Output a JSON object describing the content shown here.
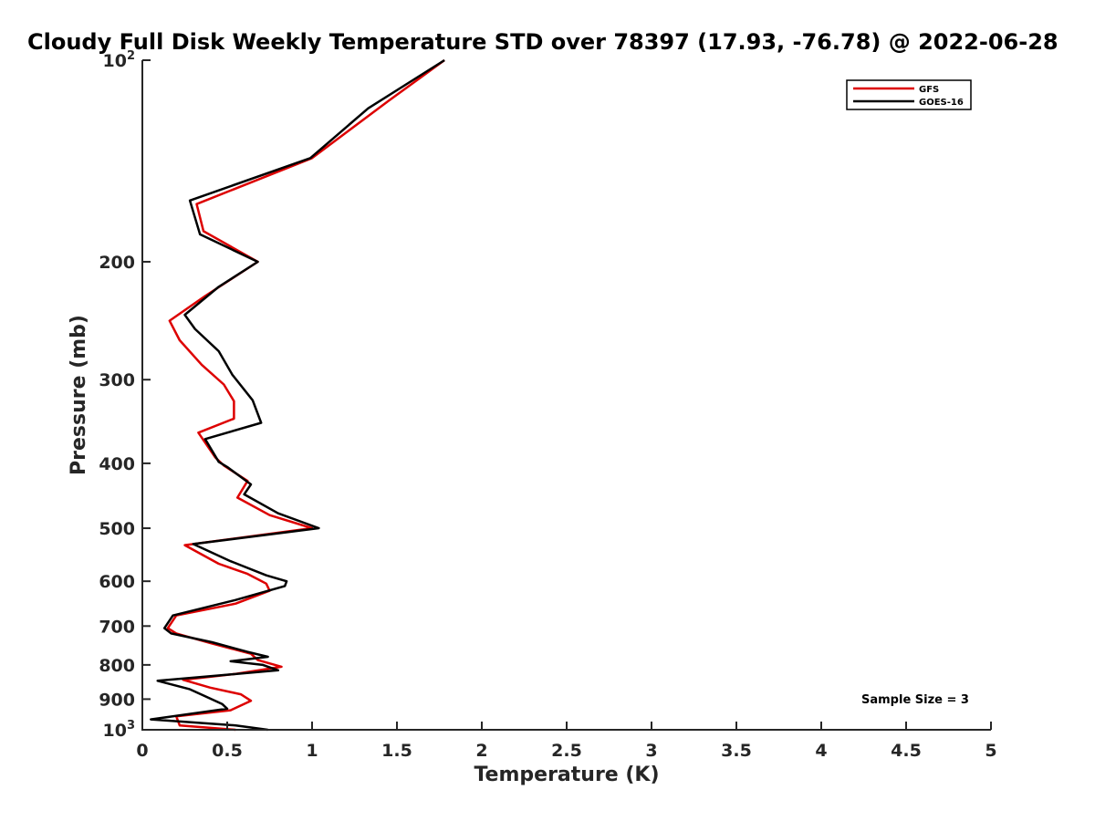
{
  "chart_data": {
    "type": "line",
    "title": "Cloudy Full Disk Weekly Temperature STD over 78397 (17.93, -76.78) @ 2022-06-28",
    "xlabel": "Temperature (K)",
    "ylabel": "Pressure (mb)",
    "xlim": [
      0,
      5
    ],
    "ylim": [
      1000,
      100
    ],
    "yscale": "log",
    "y_reversed": true,
    "x_ticks": [
      {
        "value": 0,
        "label": "0"
      },
      {
        "value": 0.5,
        "label": "0.5"
      },
      {
        "value": 1,
        "label": "1"
      },
      {
        "value": 1.5,
        "label": "1.5"
      },
      {
        "value": 2,
        "label": "2"
      },
      {
        "value": 2.5,
        "label": "2.5"
      },
      {
        "value": 3,
        "label": "3"
      },
      {
        "value": 3.5,
        "label": "3.5"
      },
      {
        "value": 4,
        "label": "4"
      },
      {
        "value": 4.5,
        "label": "4.5"
      },
      {
        "value": 5,
        "label": "5"
      }
    ],
    "y_ticks": [
      {
        "value": 100,
        "label": "10",
        "sup": "2"
      },
      {
        "value": 200,
        "label": "200"
      },
      {
        "value": 300,
        "label": "300"
      },
      {
        "value": 400,
        "label": "400"
      },
      {
        "value": 500,
        "label": "500"
      },
      {
        "value": 600,
        "label": "600"
      },
      {
        "value": 700,
        "label": "700"
      },
      {
        "value": 800,
        "label": "800"
      },
      {
        "value": 900,
        "label": "900"
      },
      {
        "value": 1000,
        "label": "10",
        "sup": "3"
      }
    ],
    "grid": false,
    "legend_position": "top-right",
    "annotation": "Sample Size = 3",
    "series": [
      {
        "name": "GFS",
        "color": "#dd0000",
        "points": [
          [
            1.78,
            100
          ],
          [
            1.45,
            115
          ],
          [
            1.0,
            140
          ],
          [
            0.32,
            164
          ],
          [
            0.36,
            180
          ],
          [
            0.68,
            200
          ],
          [
            0.37,
            225
          ],
          [
            0.16,
            245
          ],
          [
            0.22,
            262
          ],
          [
            0.35,
            285
          ],
          [
            0.48,
            305
          ],
          [
            0.54,
            323
          ],
          [
            0.54,
            343
          ],
          [
            0.33,
            360
          ],
          [
            0.43,
            392
          ],
          [
            0.48,
            403
          ],
          [
            0.62,
            425
          ],
          [
            0.56,
            450
          ],
          [
            0.75,
            478
          ],
          [
            1.0,
            500
          ],
          [
            0.25,
            530
          ],
          [
            0.45,
            565
          ],
          [
            0.62,
            585
          ],
          [
            0.73,
            605
          ],
          [
            0.75,
            620
          ],
          [
            0.55,
            648
          ],
          [
            0.2,
            675
          ],
          [
            0.15,
            705
          ],
          [
            0.2,
            718
          ],
          [
            0.4,
            742
          ],
          [
            0.64,
            770
          ],
          [
            0.68,
            787
          ],
          [
            0.82,
            805
          ],
          [
            0.55,
            825
          ],
          [
            0.24,
            842
          ],
          [
            0.4,
            865
          ],
          [
            0.58,
            885
          ],
          [
            0.64,
            905
          ],
          [
            0.52,
            935
          ],
          [
            0.2,
            955
          ],
          [
            0.22,
            985
          ],
          [
            0.55,
            1000
          ]
        ]
      },
      {
        "name": "GOES-16",
        "color": "#000000",
        "points": [
          [
            1.78,
            100
          ],
          [
            1.33,
            118
          ],
          [
            0.99,
            140
          ],
          [
            0.28,
            162
          ],
          [
            0.34,
            182
          ],
          [
            0.68,
            200
          ],
          [
            0.45,
            218
          ],
          [
            0.25,
            240
          ],
          [
            0.31,
            252
          ],
          [
            0.45,
            272
          ],
          [
            0.53,
            295
          ],
          [
            0.65,
            322
          ],
          [
            0.7,
            348
          ],
          [
            0.37,
            368
          ],
          [
            0.45,
            398
          ],
          [
            0.5,
            405
          ],
          [
            0.64,
            430
          ],
          [
            0.6,
            445
          ],
          [
            0.8,
            475
          ],
          [
            1.04,
            500
          ],
          [
            0.3,
            528
          ],
          [
            0.52,
            560
          ],
          [
            0.73,
            588
          ],
          [
            0.85,
            600
          ],
          [
            0.84,
            610
          ],
          [
            0.55,
            640
          ],
          [
            0.18,
            675
          ],
          [
            0.13,
            705
          ],
          [
            0.17,
            718
          ],
          [
            0.41,
            740
          ],
          [
            0.62,
            765
          ],
          [
            0.74,
            778
          ],
          [
            0.52,
            790
          ],
          [
            0.71,
            800
          ],
          [
            0.8,
            815
          ],
          [
            0.09,
            845
          ],
          [
            0.28,
            870
          ],
          [
            0.47,
            915
          ],
          [
            0.5,
            930
          ],
          [
            0.05,
            965
          ],
          [
            0.55,
            985
          ],
          [
            0.74,
            1000
          ]
        ]
      }
    ]
  }
}
